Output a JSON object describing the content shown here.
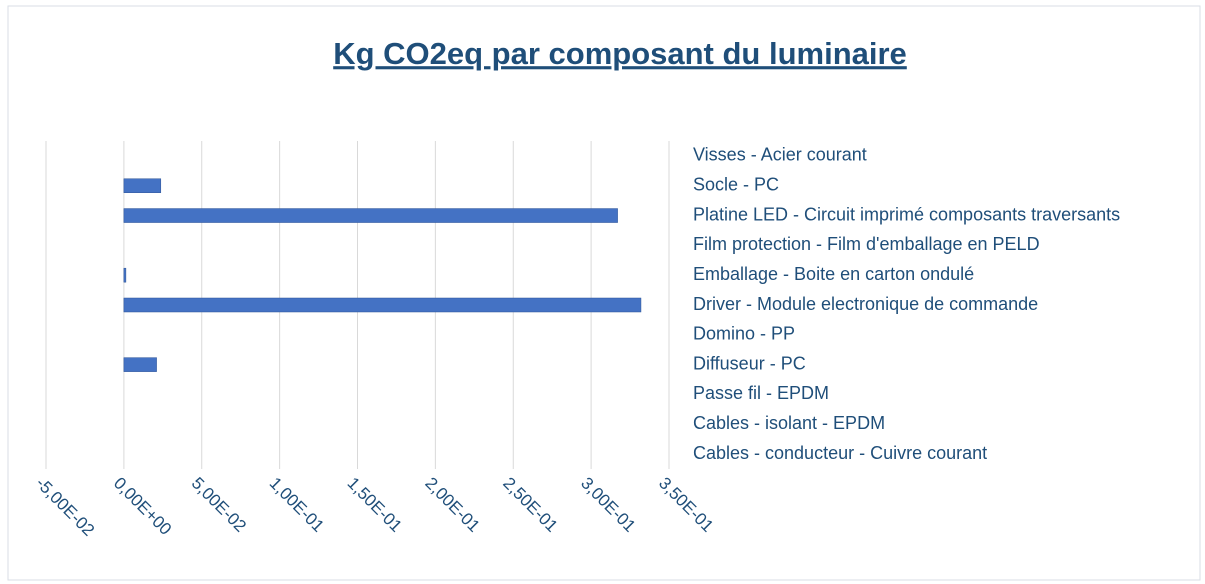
{
  "chart_data": {
    "type": "bar",
    "orientation": "horizontal",
    "title": "Kg CO2eq par composant du luminaire",
    "categories": [
      "Visses - Acier courant",
      "Socle - PC",
      "Platine LED - Circuit imprimé composants traversants",
      "Film protection - Film d'emballage en PELD",
      "Emballage - Boite en carton ondulé",
      "Driver - Module electronique de commande",
      "Domino - PP",
      "Diffuseur - PC",
      "Passe fil  - EPDM",
      "Cables - isolant - EPDM",
      "Cables - conducteur - Cuivre courant"
    ],
    "values": [
      0,
      0.0237,
      0.317,
      0,
      0.0013,
      0.332,
      0,
      0.021,
      0,
      0,
      0
    ],
    "color": "#4472c4",
    "xlim": [
      -0.05,
      0.35
    ],
    "xticks": [
      {
        "value": -0.05,
        "label": "-5,00E-02"
      },
      {
        "value": 0,
        "label": "0,00E+00"
      },
      {
        "value": 0.05,
        "label": "5,00E-02"
      },
      {
        "value": 0.1,
        "label": "1,00E-01"
      },
      {
        "value": 0.15,
        "label": "1,50E-01"
      },
      {
        "value": 0.2,
        "label": "2,00E-01"
      },
      {
        "value": 0.25,
        "label": "2,50E-01"
      },
      {
        "value": 0.3,
        "label": "3,00E-01"
      },
      {
        "value": 0.35,
        "label": "3,50E-01"
      }
    ],
    "grid": true
  }
}
